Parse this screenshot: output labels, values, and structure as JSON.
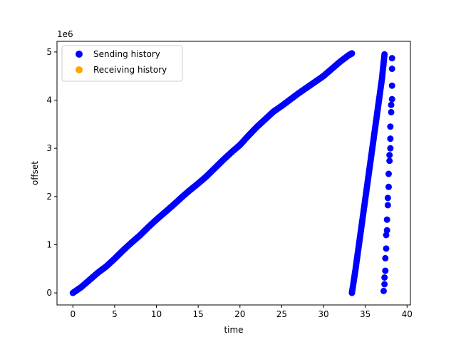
{
  "chart_data": {
    "type": "scatter",
    "title": "",
    "xlabel": "time",
    "ylabel": "offset",
    "y_multiplier_label": "1e6",
    "xlim": [
      -1.9,
      40.4
    ],
    "ylim": [
      -0.25,
      5.22
    ],
    "x_ticks": [
      0,
      5,
      10,
      15,
      20,
      25,
      30,
      35,
      40
    ],
    "x_tick_labels": [
      "0",
      "5",
      "10",
      "15",
      "20",
      "25",
      "30",
      "35",
      "40"
    ],
    "y_ticks": [
      0,
      1,
      2,
      3,
      4,
      5
    ],
    "y_tick_labels": [
      "0",
      "1",
      "2",
      "3",
      "4",
      "5"
    ],
    "y_unit_note": "offset values in millions (1e6)",
    "grid": false,
    "legend_position": "upper-left",
    "series": [
      {
        "name": "Sending history",
        "color": "#0000ff",
        "segments": [
          {
            "x": [
              0,
              1,
              2,
              3,
              4,
              5,
              6,
              7,
              8,
              9,
              10,
              11,
              12,
              13,
              14,
              15,
              16,
              17,
              18,
              19,
              20,
              21,
              22,
              23,
              24,
              25,
              26,
              27,
              28,
              29,
              30,
              31,
              32,
              33,
              33.4
            ],
            "y": [
              0,
              0.12,
              0.27,
              0.42,
              0.55,
              0.71,
              0.88,
              1.04,
              1.19,
              1.36,
              1.52,
              1.67,
              1.82,
              1.98,
              2.13,
              2.27,
              2.42,
              2.59,
              2.76,
              2.92,
              3.07,
              3.26,
              3.44,
              3.6,
              3.76,
              3.88,
              4.01,
              4.14,
              4.26,
              4.38,
              4.5,
              4.65,
              4.8,
              4.93,
              4.97
            ]
          },
          {
            "x": [
              33.4,
              33.8,
              34.2,
              34.6,
              35,
              35.4,
              35.8,
              36.2,
              36.6,
              37,
              37.3
            ],
            "y": [
              0,
              0.45,
              0.95,
              1.45,
              1.95,
              2.45,
              2.95,
              3.45,
              3.95,
              4.45,
              4.95
            ]
          }
        ],
        "sparse_points": {
          "x": [
            37.2,
            37.3,
            37.3,
            37.4,
            37.4,
            37.5,
            37.5,
            37.6,
            37.6,
            37.7,
            37.7,
            37.8,
            37.8,
            37.9,
            37.9,
            38.0,
            38.0,
            38.0,
            38.1,
            38.1,
            38.2,
            38.2,
            38.2,
            38.2
          ],
          "y": [
            0.04,
            0.18,
            0.32,
            0.46,
            0.72,
            0.92,
            1.2,
            1.3,
            1.52,
            1.82,
            1.97,
            2.2,
            2.47,
            2.74,
            2.86,
            3.0,
            3.2,
            3.45,
            3.75,
            3.9,
            4.02,
            4.3,
            4.65,
            4.87
          ]
        }
      },
      {
        "name": "Receiving history",
        "color": "#ffa500",
        "points": []
      }
    ]
  }
}
